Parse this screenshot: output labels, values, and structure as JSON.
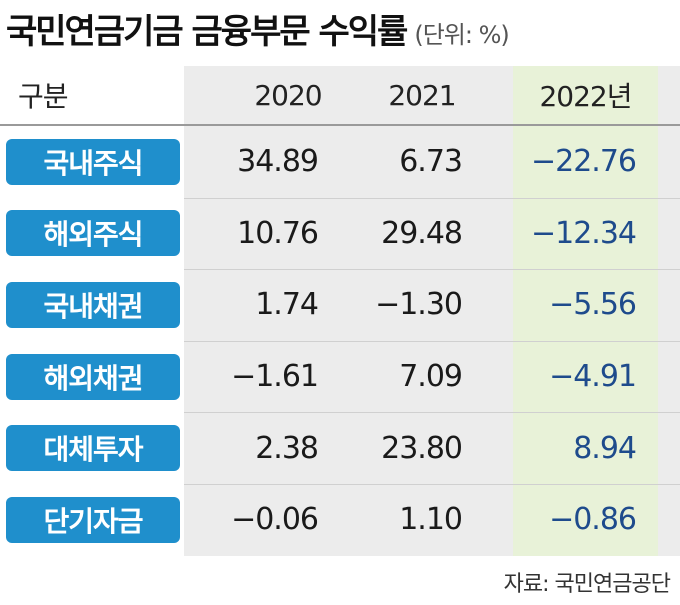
{
  "header": {
    "title": "국민연금기금 금융부문 수익률",
    "unit": "(단위: %)"
  },
  "source": "자료: 국민연금공단",
  "chart_data": {
    "type": "table",
    "title": "국민연금기금 금융부문 수익률",
    "columns": [
      "구분",
      "2020",
      "2021",
      "2022년"
    ],
    "rows": [
      {
        "label": "국내주식",
        "values": [
          "34.89",
          "6.73",
          "−22.76"
        ]
      },
      {
        "label": "해외주식",
        "values": [
          "10.76",
          "29.48",
          "−12.34"
        ]
      },
      {
        "label": "국내채권",
        "values": [
          "1.74",
          "−1.30",
          "−5.56"
        ]
      },
      {
        "label": "해외채권",
        "values": [
          "−1.61",
          "7.09",
          "−4.91"
        ]
      },
      {
        "label": "대체투자",
        "values": [
          "2.38",
          "23.80",
          "8.94"
        ]
      },
      {
        "label": "단기자금",
        "values": [
          "−0.06",
          "1.10",
          "−0.86"
        ]
      }
    ],
    "highlight_color": "#e8f2d8",
    "label_color": "#1f8fcc",
    "value_2022_color": "#1e4b8c"
  }
}
